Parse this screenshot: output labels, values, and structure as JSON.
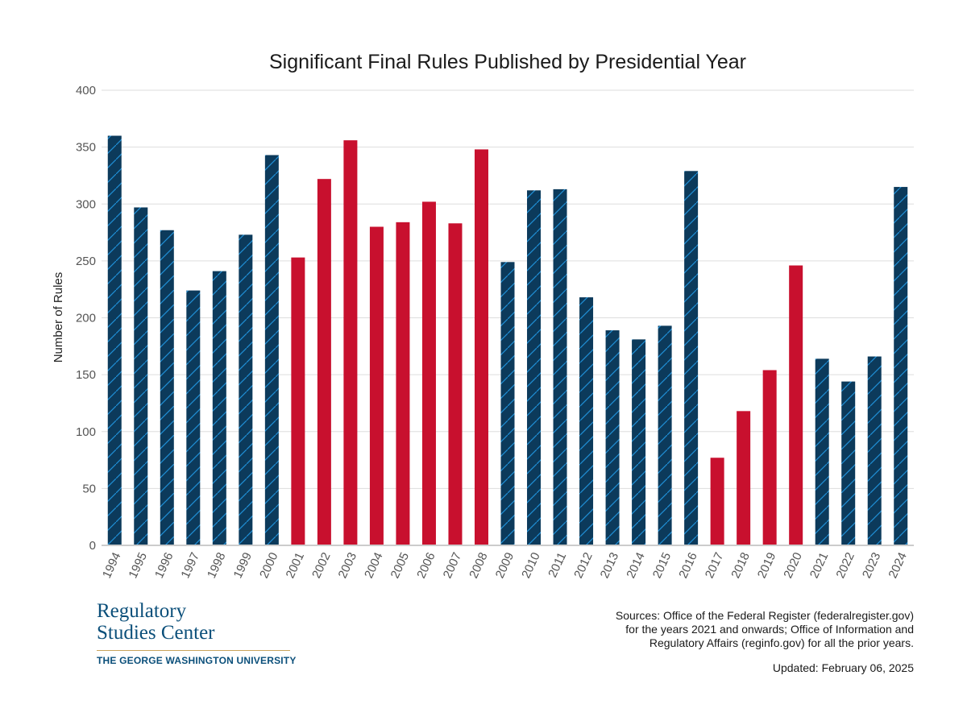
{
  "colors": {
    "democrat_bar": "#0c3a5b",
    "democrat_hatch": "#1f8fd6",
    "republican_bar": "#c8102e",
    "grid": "#dddddd",
    "brand": "#0b4f7a",
    "brand_rule": "#c9a45c"
  },
  "chart_data": {
    "type": "bar",
    "title": "Significant Final Rules Published by Presidential Year",
    "xlabel": "",
    "ylabel": "Number of Rules",
    "ylim": [
      0,
      400
    ],
    "yticks": [
      0,
      50,
      100,
      150,
      200,
      250,
      300,
      350,
      400
    ],
    "grid": true,
    "categories": [
      "1994",
      "1995",
      "1996",
      "1997",
      "1998",
      "1999",
      "2000",
      "2001",
      "2002",
      "2003",
      "2004",
      "2005",
      "2006",
      "2007",
      "2008",
      "2009",
      "2010",
      "2011",
      "2012",
      "2013",
      "2014",
      "2015",
      "2016",
      "2017",
      "2018",
      "2019",
      "2020",
      "2021",
      "2022",
      "2023",
      "2024"
    ],
    "values": [
      360,
      297,
      277,
      224,
      241,
      273,
      343,
      253,
      322,
      356,
      280,
      284,
      302,
      283,
      348,
      249,
      312,
      313,
      218,
      189,
      181,
      193,
      329,
      77,
      118,
      154,
      246,
      164,
      144,
      166,
      315
    ],
    "bar_fill": [
      "hatched-navy",
      "hatched-navy",
      "hatched-navy",
      "hatched-navy",
      "hatched-navy",
      "hatched-navy",
      "hatched-navy",
      "red",
      "red",
      "red",
      "red",
      "red",
      "red",
      "red",
      "red",
      "hatched-navy",
      "hatched-navy",
      "hatched-navy",
      "hatched-navy",
      "hatched-navy",
      "hatched-navy",
      "hatched-navy",
      "hatched-navy",
      "red",
      "red",
      "red",
      "red",
      "hatched-navy",
      "hatched-navy",
      "hatched-navy",
      "hatched-navy"
    ]
  },
  "logo": {
    "line1": "Regulatory",
    "line2": "Studies Center",
    "subtitle": "THE GEORGE WASHINGTON UNIVERSITY"
  },
  "footer": {
    "sources": [
      "Sources: Office of the Federal Register (federalregister.gov)",
      "for the years 2021 and onwards; Office of Information and",
      "Regulatory Affairs (reginfo.gov) for all the prior years."
    ],
    "updated": "Updated: February 06, 2025"
  }
}
